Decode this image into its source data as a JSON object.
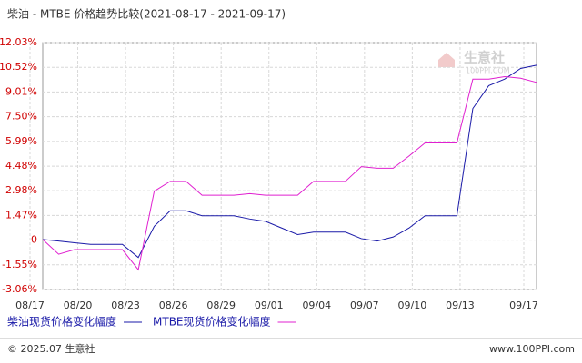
{
  "chart_data": {
    "type": "line",
    "title": "柴油 - MTBE 价格趋势比较(2021-08-17 - 2021-09-17)",
    "categories": [
      "08/17",
      null,
      null,
      "08/20",
      null,
      null,
      "08/23",
      null,
      null,
      "08/26",
      null,
      null,
      "08/29",
      null,
      null,
      "09/01",
      null,
      null,
      "09/04",
      null,
      null,
      "09/07",
      null,
      null,
      "09/10",
      null,
      null,
      "09/13",
      null,
      null,
      null,
      "09/17"
    ],
    "series": [
      {
        "name": "柴油现货价格变化幅度",
        "color": "#1a1aa8",
        "values": [
          0,
          -0.1,
          -0.2,
          -0.3,
          -0.3,
          -0.3,
          -1.1,
          0.8,
          1.75,
          1.75,
          1.45,
          1.45,
          1.45,
          1.25,
          1.1,
          0.7,
          0.3,
          0.45,
          0.45,
          0.45,
          0.05,
          -0.1,
          0.15,
          0.7,
          1.45,
          1.45,
          1.45,
          8.0,
          9.4,
          9.8,
          10.45,
          10.65
        ]
      },
      {
        "name": "MTBE现货价格变化幅度",
        "color": "#e020d0",
        "values": [
          0,
          -0.9,
          -0.62,
          -0.62,
          -0.62,
          -0.62,
          -1.85,
          2.95,
          3.55,
          3.55,
          2.7,
          2.7,
          2.7,
          2.8,
          2.7,
          2.7,
          2.7,
          3.55,
          3.55,
          3.55,
          4.45,
          4.35,
          4.35,
          5.1,
          5.9,
          5.9,
          5.9,
          9.8,
          9.8,
          9.95,
          9.85,
          9.6
        ]
      }
    ],
    "ylim": [
      -3.06,
      12.03
    ],
    "yticks": [
      {
        "value": 12.03,
        "label": "12.03%"
      },
      {
        "value": 10.52,
        "label": "10.52%"
      },
      {
        "value": 9.01,
        "label": "9.01%"
      },
      {
        "value": 7.5,
        "label": "7.50%"
      },
      {
        "value": 5.99,
        "label": "5.99%"
      },
      {
        "value": 4.48,
        "label": "4.48%"
      },
      {
        "value": 2.98,
        "label": "2.98%"
      },
      {
        "value": 1.47,
        "label": "1.47%"
      },
      {
        "value": -0.04,
        "label": "0"
      },
      {
        "value": -1.55,
        "label": "-1.55%"
      },
      {
        "value": -3.06,
        "label": "-3.06%"
      }
    ],
    "grid": true,
    "watermark": {
      "name": "生意社",
      "site": "100PPI.COM"
    },
    "footer": {
      "copyright": "© 2025.07 生意社",
      "url": "www.100PPI.com"
    }
  }
}
